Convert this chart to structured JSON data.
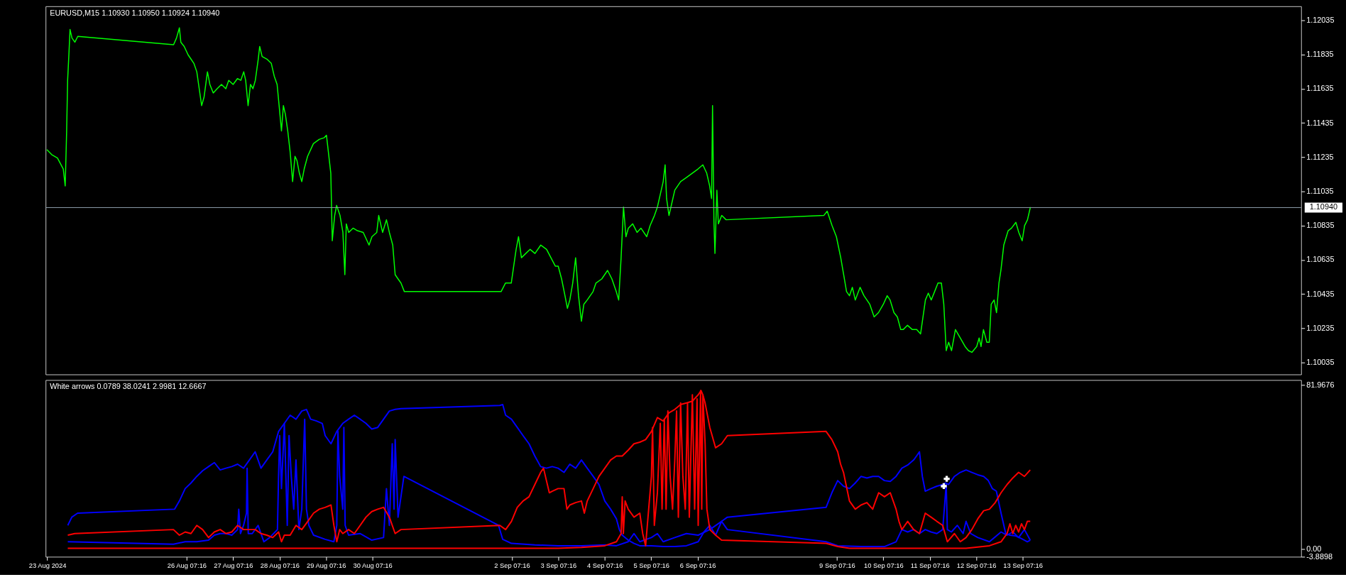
{
  "chart_data": [
    {
      "type": "line",
      "title": "EURUSD,M15  1.10930 1.10950 1.10924 1.10940",
      "xlim": [
        "2024-08-23T06:22",
        "2024-09-19T07:08"
      ],
      "ylim": [
        1.09965,
        1.12117
      ],
      "yticks": [
        1.10035,
        1.10235,
        1.10435,
        1.10635,
        1.10835,
        1.11035,
        1.11235,
        1.11435,
        1.11635,
        1.11835,
        1.12035
      ],
      "tick_labels": "y",
      "grid": false,
      "legend": false,
      "ref_lines": [
        {
          "axis": "y",
          "value": 1.1094,
          "label": "1.10940",
          "color": "#8a9aa8"
        }
      ],
      "series": [
        {
          "color": "#00ff00",
          "x": [
            "2024-08-23T07:00",
            "2024-08-23T09:30",
            "2024-08-23T12:30",
            "2024-08-23T15:30",
            "2024-08-23T16:30",
            "2024-08-23T17:15",
            "2024-08-23T17:45",
            "2024-08-23T18:30",
            "2024-08-23T19:00",
            "2024-08-23T20:00",
            "2024-08-23T21:30",
            "2024-08-23T23:00",
            "2024-08-26T00:30",
            "2024-08-26T02:00",
            "2024-08-26T03:30",
            "2024-08-26T04:15",
            "2024-08-26T06:00",
            "2024-08-26T08:00",
            "2024-08-26T09:30",
            "2024-08-26T11:00",
            "2024-08-26T12:30",
            "2024-08-26T13:45",
            "2024-08-26T15:00",
            "2024-08-26T16:15",
            "2024-08-26T18:00",
            "2024-08-26T19:15",
            "2024-08-26T21:00",
            "2024-08-26T23:00",
            "2024-08-27T01:15",
            "2024-08-27T03:30",
            "2024-08-27T05:00",
            "2024-08-27T07:15",
            "2024-08-27T09:30",
            "2024-08-27T11:15",
            "2024-08-27T12:45",
            "2024-08-27T13:45",
            "2024-08-27T15:00",
            "2024-08-27T16:15",
            "2024-08-27T17:30",
            "2024-08-27T18:45",
            "2024-08-27T20:15",
            "2024-08-27T21:00",
            "2024-08-27T22:15",
            "2024-08-28T00:45",
            "2024-08-28T03:00",
            "2024-08-28T04:30",
            "2024-08-28T06:00",
            "2024-08-28T07:15",
            "2024-08-28T08:15",
            "2024-08-28T09:15",
            "2024-08-28T10:15",
            "2024-08-28T11:30",
            "2024-08-28T12:45",
            "2024-08-28T14:00",
            "2024-08-28T15:15",
            "2024-08-28T16:15",
            "2024-08-28T17:30",
            "2024-08-28T18:45",
            "2024-08-28T20:00",
            "2024-08-28T21:45",
            "2024-08-29T00:45",
            "2024-08-29T03:45",
            "2024-08-29T06:15",
            "2024-08-29T07:30",
            "2024-08-29T08:15",
            "2024-08-29T09:45",
            "2024-08-29T10:30",
            "2024-08-29T11:45",
            "2024-08-29T12:45",
            "2024-08-29T14:30",
            "2024-08-29T16:00",
            "2024-08-29T17:00",
            "2024-08-29T17:45",
            "2024-08-29T19:00",
            "2024-08-29T21:15",
            "2024-08-29T23:30",
            "2024-08-30T02:30",
            "2024-08-30T05:30",
            "2024-08-30T07:00",
            "2024-08-30T09:30",
            "2024-08-30T10:30",
            "2024-08-30T12:30",
            "2024-08-30T14:30",
            "2024-08-30T16:00",
            "2024-08-30T17:45",
            "2024-08-30T19:00",
            "2024-08-30T20:30",
            "2024-08-30T22:00",
            "2024-08-30T23:45",
            "2024-09-02T01:45",
            "2024-09-02T04:00",
            "2024-09-02T07:00",
            "2024-09-02T09:30",
            "2024-09-02T10:45",
            "2024-09-02T12:15",
            "2024-09-02T14:30",
            "2024-09-02T16:45",
            "2024-09-02T19:15",
            "2024-09-02T22:15",
            "2024-09-03T01:15",
            "2024-09-03T03:30",
            "2024-09-03T05:45",
            "2024-09-03T07:15",
            "2024-09-03T09:00",
            "2024-09-03T10:45",
            "2024-09-03T12:00",
            "2024-09-03T13:15",
            "2024-09-03T14:45",
            "2024-09-03T16:15",
            "2024-09-03T17:45",
            "2024-09-03T19:15",
            "2024-09-03T20:30",
            "2024-09-03T22:15",
            "2024-09-04T01:15",
            "2024-09-04T02:45",
            "2024-09-04T05:45",
            "2024-09-04T08:45",
            "2024-09-04T11:00",
            "2024-09-04T13:15",
            "2024-09-04T14:30",
            "2024-09-04T15:45",
            "2024-09-04T17:00",
            "2024-09-04T18:15",
            "2024-09-04T19:30",
            "2024-09-04T21:45",
            "2024-09-05T00:00",
            "2024-09-05T02:00",
            "2024-09-05T05:00",
            "2024-09-05T06:45",
            "2024-09-05T09:00",
            "2024-09-05T10:30",
            "2024-09-05T12:00",
            "2024-09-05T13:30",
            "2024-09-05T14:30",
            "2024-09-05T15:15",
            "2024-09-05T16:30",
            "2024-09-05T18:00",
            "2024-09-05T19:30",
            "2024-09-05T22:30",
            "2024-09-06T01:30",
            "2024-09-06T04:30",
            "2024-09-06T07:30",
            "2024-09-06T10:00",
            "2024-09-06T12:00",
            "2024-09-06T13:30",
            "2024-09-06T14:30",
            "2024-09-06T15:00",
            "2024-09-06T15:45",
            "2024-09-06T16:15",
            "2024-09-06T17:15",
            "2024-09-06T18:00",
            "2024-09-06T19:45",
            "2024-09-06T22:00",
            "2024-09-09T00:30",
            "2024-09-09T02:15",
            "2024-09-09T04:45",
            "2024-09-09T07:00",
            "2024-09-09T09:15",
            "2024-09-09T10:45",
            "2024-09-09T12:15",
            "2024-09-09T13:45",
            "2024-09-09T15:15",
            "2024-09-09T16:45",
            "2024-09-09T19:15",
            "2024-09-09T21:15",
            "2024-09-10T00:15",
            "2024-09-10T02:30",
            "2024-09-10T04:45",
            "2024-09-10T07:15",
            "2024-09-10T09:15",
            "2024-09-10T10:45",
            "2024-09-10T12:45",
            "2024-09-10T14:30",
            "2024-09-10T16:15",
            "2024-09-10T17:30",
            "2024-09-10T19:45",
            "2024-09-10T22:15",
            "2024-09-11T00:30",
            "2024-09-11T02:30",
            "2024-09-11T03:45",
            "2024-09-11T05:00",
            "2024-09-11T06:30",
            "2024-09-11T08:00",
            "2024-09-11T09:45",
            "2024-09-11T11:30",
            "2024-09-11T13:15",
            "2024-09-11T14:30",
            "2024-09-11T15:45",
            "2024-09-11T17:00",
            "2024-09-11T18:30",
            "2024-09-11T20:30",
            "2024-09-11T23:00",
            "2024-09-12T01:30",
            "2024-09-12T03:15",
            "2024-09-12T05:00",
            "2024-09-12T07:30",
            "2024-09-12T08:45",
            "2024-09-12T09:45",
            "2024-09-12T11:00",
            "2024-09-12T12:45",
            "2024-09-12T14:00",
            "2024-09-12T15:00",
            "2024-09-12T16:30",
            "2024-09-12T17:45",
            "2024-09-12T19:00",
            "2024-09-12T20:00",
            "2024-09-12T21:30",
            "2024-09-12T23:45",
            "2024-09-13T01:30",
            "2024-09-13T03:45",
            "2024-09-13T05:15",
            "2024-09-13T07:00",
            "2024-09-13T08:15",
            "2024-09-13T09:45",
            "2024-09-13T11:15"
          ],
          "values": [
            1.11279,
            1.1125,
            1.1123,
            1.11166,
            1.11067,
            1.11388,
            1.11684,
            1.11857,
            1.11981,
            1.11931,
            1.11907,
            1.11941,
            1.11892,
            1.11931,
            1.11991,
            1.11907,
            1.11882,
            1.11833,
            1.11808,
            1.11783,
            1.11734,
            1.11635,
            1.11536,
            1.11586,
            1.11734,
            1.1166,
            1.1161,
            1.11635,
            1.1166,
            1.11635,
            1.11684,
            1.1166,
            1.11694,
            1.11684,
            1.11734,
            1.11684,
            1.11536,
            1.1166,
            1.11635,
            1.11684,
            1.11808,
            1.11882,
            1.11823,
            1.11808,
            1.11783,
            1.11709,
            1.1166,
            1.11511,
            1.11388,
            1.11536,
            1.11487,
            1.11388,
            1.11264,
            1.11092,
            1.1124,
            1.11215,
            1.11141,
            1.11092,
            1.11166,
            1.1124,
            1.11314,
            1.11339,
            1.11348,
            1.11363,
            1.11289,
            1.11141,
            1.10746,
            1.10894,
            1.10953,
            1.10894,
            1.10795,
            1.10548,
            1.10845,
            1.10795,
            1.1082,
            1.10805,
            1.10795,
            1.10721,
            1.1077,
            1.10795,
            1.10894,
            1.10795,
            1.10869,
            1.10795,
            1.10721,
            1.10548,
            1.10523,
            1.10499,
            1.10449,
            1.10449,
            1.10499,
            1.10499,
            1.10696,
            1.1077,
            1.10647,
            1.10672,
            1.10696,
            1.10672,
            1.10721,
            1.10696,
            1.10647,
            1.10598,
            1.10598,
            1.10523,
            1.10425,
            1.10351,
            1.104,
            1.10499,
            1.10647,
            1.10425,
            1.10276,
            1.10375,
            1.104,
            1.10449,
            1.10499,
            1.10523,
            1.10573,
            1.10523,
            1.10449,
            1.104,
            1.10647,
            1.10943,
            1.1077,
            1.1082,
            1.10845,
            1.10795,
            1.1082,
            1.1077,
            1.10835,
            1.10894,
            1.10943,
            1.11017,
            1.11092,
            1.1119,
            1.10993,
            1.10894,
            1.10968,
            1.11042,
            1.11092,
            1.11116,
            1.11141,
            1.11166,
            1.1119,
            1.11141,
            1.11067,
            1.10993,
            1.11536,
            1.10845,
            1.10672,
            1.11042,
            1.10845,
            1.10894,
            1.10869,
            1.10894,
            1.10919,
            1.10835,
            1.1077,
            1.10647,
            1.10548,
            1.10449,
            1.10425,
            1.10474,
            1.104,
            1.10474,
            1.10425,
            1.10375,
            1.10301,
            1.10326,
            1.10375,
            1.10425,
            1.104,
            1.10326,
            1.10301,
            1.10227,
            1.10227,
            1.10252,
            1.10227,
            1.10227,
            1.10202,
            1.10301,
            1.104,
            1.1044,
            1.104,
            1.10449,
            1.10499,
            1.10499,
            1.10375,
            1.10104,
            1.10153,
            1.10104,
            1.10227,
            1.10178,
            1.10128,
            1.10104,
            1.10094,
            1.10128,
            1.10178,
            1.10128,
            1.10227,
            1.10153,
            1.10153,
            1.10375,
            1.104,
            1.10326,
            1.10499,
            1.10573,
            1.10721,
            1.10805,
            1.1082,
            1.10854,
            1.10795,
            1.10746,
            1.10835,
            1.10869,
            1.10943
          ]
        }
      ]
    },
    {
      "type": "line",
      "title": "White arrows 0.0789 38.0241 2.9981 12.6667",
      "xlim": [
        "2024-08-23T06:22",
        "2024-09-19T07:08"
      ],
      "ylim": [
        -3.8898,
        84.5
      ],
      "xticks": [
        {
          "value": "2024-08-23T07:16",
          "label": "23 Aug 2024"
        },
        {
          "value": "2024-08-26T07:16",
          "label": "26 Aug 07:16"
        },
        {
          "value": "2024-08-27T07:16",
          "label": "27 Aug 07:16"
        },
        {
          "value": "2024-08-28T07:16",
          "label": "28 Aug 07:16"
        },
        {
          "value": "2024-08-29T07:16",
          "label": "29 Aug 07:16"
        },
        {
          "value": "2024-08-30T07:16",
          "label": "30 Aug 07:16"
        },
        {
          "value": "2024-09-02T07:16",
          "label": "2 Sep 07:16"
        },
        {
          "value": "2024-09-03T07:16",
          "label": "3 Sep 07:16"
        },
        {
          "value": "2024-09-04T07:16",
          "label": "4 Sep 07:16"
        },
        {
          "value": "2024-09-05T07:16",
          "label": "5 Sep 07:16"
        },
        {
          "value": "2024-09-06T07:16",
          "label": "6 Sep 07:16"
        },
        {
          "value": "2024-09-09T07:16",
          "label": "9 Sep 07:16"
        },
        {
          "value": "2024-09-10T07:16",
          "label": "10 Sep 07:16"
        },
        {
          "value": "2024-09-11T07:16",
          "label": "11 Sep 07:16"
        },
        {
          "value": "2024-09-12T07:16",
          "label": "12 Sep 07:16"
        },
        {
          "value": "2024-09-13T07:16",
          "label": "13 Sep 07:16"
        }
      ],
      "yticks": [
        81.9676,
        {
          "value": 0,
          "label": "0.00"
        },
        -3.8898
      ],
      "grid": false,
      "legend": false,
      "series": [
        {
          "color": "#0000ff",
          "x": [
            "2024-08-23T17:50",
            "2024-08-23T19:55",
            "2024-08-23T22:55",
            "2024-08-26T01:00",
            "2024-08-26T03:30",
            "2024-08-26T06:30",
            "2024-08-26T09:30",
            "2024-08-26T12:30",
            "2024-08-26T15:30",
            "2024-08-26T18:35",
            "2024-08-26T21:35",
            "2024-08-27T00:35",
            "2024-08-27T03:35",
            "2024-08-27T06:35",
            "2024-08-27T09:35",
            "2024-08-27T12:40",
            "2024-08-27T15:40",
            "2024-08-27T18:40",
            "2024-08-27T20:10",
            "2024-08-27T21:40",
            "2024-08-28T00:40",
            "2024-08-28T03:45",
            "2024-08-28T06:45",
            "2024-08-28T09:45",
            "2024-08-28T12:45",
            "2024-08-28T15:45",
            "2024-08-28T18:45",
            "2024-08-28T21:10",
            "2024-08-28T23:20",
            "2024-08-29T02:20",
            "2024-08-29T05:20",
            "2024-08-29T06:50",
            "2024-08-29T09:50",
            "2024-08-29T12:50",
            "2024-08-29T15:55",
            "2024-08-29T18:55",
            "2024-08-29T21:55",
            "2024-08-30T00:55",
            "2024-08-30T03:55",
            "2024-08-30T06:55",
            "2024-08-30T10:00",
            "2024-08-30T13:00",
            "2024-08-30T16:00",
            "2024-08-30T19:00",
            "2024-08-30T22:00",
            "2024-09-02T01:05",
            "2024-09-02T02:35",
            "2024-09-02T04:05",
            "2024-09-02T07:05",
            "2024-09-02T10:05",
            "2024-09-02T13:05",
            "2024-09-02T16:10",
            "2024-09-02T19:10",
            "2024-09-02T22:10",
            "2024-09-03T01:10",
            "2024-09-03T04:10",
            "2024-09-03T07:10",
            "2024-09-03T10:15",
            "2024-09-03T13:15",
            "2024-09-03T16:15",
            "2024-09-03T19:15",
            "2024-09-03T22:15",
            "2024-09-04T01:20",
            "2024-09-04T04:20",
            "2024-09-04T07:20",
            "2024-09-04T10:20",
            "2024-09-04T13:20",
            "2024-09-04T14:50",
            "2024-09-04T16:20",
            "2024-09-04T19:25",
            "2024-09-04T22:25",
            "2024-09-05T01:25",
            "2024-09-05T07:25",
            "2024-09-05T13:30",
            "2024-09-05T19:30",
            "2024-09-06T01:30",
            "2024-09-06T07:35",
            "2024-09-06T10:35",
            "2024-09-06T13:35",
            "2024-09-06T16:35",
            "2024-09-06T19:40",
            "2024-09-06T22:40",
            "2024-09-09T01:40",
            "2024-09-09T04:40",
            "2024-09-09T07:40",
            "2024-09-09T10:40",
            "2024-09-09T13:45",
            "2024-09-09T16:45",
            "2024-09-09T19:45",
            "2024-09-09T22:45",
            "2024-09-10T01:45",
            "2024-09-10T04:50",
            "2024-09-10T07:50",
            "2024-09-10T10:50",
            "2024-09-10T13:50",
            "2024-09-10T16:50",
            "2024-09-10T19:50",
            "2024-09-10T22:55",
            "2024-09-11T00:25",
            "2024-09-11T01:55",
            "2024-09-11T03:25",
            "2024-09-11T04:55",
            "2024-09-11T07:55",
            "2024-09-11T10:55",
            "2024-09-11T13:55",
            "2024-09-11T15:25",
            "2024-09-11T16:55",
            "2024-09-11T20:00",
            "2024-09-11T23:00",
            "2024-09-12T02:00",
            "2024-09-12T05:00",
            "2024-09-12T08:05",
            "2024-09-12T11:05",
            "2024-09-12T13:30",
            "2024-09-12T15:35",
            "2024-09-12T17:40",
            "2024-09-12T20:05",
            "2024-09-12T22:30",
            "2024-09-13T00:40",
            "2024-09-13T03:40",
            "2024-09-13T06:40",
            "2024-09-13T09:40",
            "2024-09-13T11:10"
          ],
          "values": [
            11.8,
            15.9,
            17.9,
            19.9,
            24.0,
            30.2,
            33.0,
            36.3,
            39.1,
            41.2,
            43.2,
            39.5,
            40.4,
            41.2,
            42.4,
            40.4,
            44.5,
            48.6,
            44.5,
            40.4,
            44.5,
            48.6,
            58.8,
            62.8,
            66.9,
            64.9,
            69.0,
            69.8,
            64.9,
            64.0,
            62.8,
            56.7,
            52.6,
            58.8,
            62.8,
            64.9,
            66.9,
            64.9,
            62.8,
            60.0,
            60.8,
            64.9,
            69.0,
            69.8,
            70.2,
            71.8,
            72.2,
            66.9,
            64.9,
            60.8,
            56.7,
            52.6,
            46.5,
            41.2,
            40.4,
            41.2,
            40.4,
            38.3,
            42.4,
            40.4,
            44.5,
            40.4,
            36.3,
            32.2,
            24.0,
            19.9,
            15.1,
            9.7,
            6.9,
            4.4,
            2.8,
            1.6,
            1.6,
            1.2,
            1.2,
            1.6,
            3.6,
            8.5,
            11.8,
            6.9,
            13.8,
            15.9,
            20.8,
            28.1,
            34.2,
            31.4,
            30.2,
            33.0,
            36.3,
            35.5,
            36.3,
            36.3,
            34.2,
            33.8,
            36.3,
            40.4,
            42.0,
            44.5,
            46.5,
            48.6,
            36.3,
            28.9,
            30.2,
            31.4,
            32.2,
            33.0,
            32.2,
            36.3,
            38.3,
            39.5,
            38.3,
            37.1,
            36.3,
            34.2,
            30.2,
            28.9,
            17.9,
            7.7,
            6.9,
            6.5,
            5.2,
            3.6,
            4.4
          ]
        },
        {
          "color": "#0000ff",
          "x": [
            "2024-08-23T17:50",
            "2024-08-26T00:25",
            "2024-08-26T06:30",
            "2024-08-26T12:30",
            "2024-08-26T18:35",
            "2024-08-26T21:35",
            "2024-08-27T00:35",
            "2024-08-27T03:35",
            "2024-08-27T06:35",
            "2024-08-27T09:35",
            "2024-08-27T10:10",
            "2024-08-27T11:05",
            "2024-08-27T12:40",
            "2024-08-27T14:10",
            "2024-08-27T14:30",
            "2024-08-27T15:05",
            "2024-08-27T17:10",
            "2024-08-27T20:10",
            "2024-08-27T23:10",
            "2024-08-28T02:10",
            "2024-08-28T06:10",
            "2024-08-28T06:45",
            "2024-08-28T07:20",
            "2024-08-28T08:15",
            "2024-08-28T09:45",
            "2024-08-28T11:15",
            "2024-08-28T12:10",
            "2024-08-28T13:20",
            "2024-08-28T14:35",
            "2024-08-28T15:45",
            "2024-08-28T17:15",
            "2024-08-28T18:45",
            "2024-08-28T20:15",
            "2024-08-28T21:10",
            "2024-08-28T22:25",
            "2024-08-29T00:50",
            "2024-08-29T06:50",
            "2024-08-29T11:20",
            "2024-08-29T12:50",
            "2024-08-29T13:25",
            "2024-08-29T14:20",
            "2024-08-29T15:55",
            "2024-08-29T16:30",
            "2024-08-29T17:10",
            "2024-08-29T18:55",
            "2024-08-30T00:55",
            "2024-08-30T06:55",
            "2024-08-30T13:00",
            "2024-08-30T14:30",
            "2024-08-30T16:00",
            "2024-08-30T17:30",
            "2024-08-30T18:25",
            "2024-08-30T19:00",
            "2024-08-30T20:30",
            "2024-08-30T23:30",
            "2024-09-02T00:25",
            "2024-09-02T02:35",
            "2024-09-02T07:05",
            "2024-09-02T19:10",
            "2024-09-03T07:10",
            "2024-09-03T19:15",
            "2024-09-04T07:20",
            "2024-09-04T13:20",
            "2024-09-04T19:25",
            "2024-09-04T22:25",
            "2024-09-05T01:25",
            "2024-09-05T07:25",
            "2024-09-05T10:30",
            "2024-09-05T13:30",
            "2024-09-05T19:30",
            "2024-09-06T01:30",
            "2024-09-06T07:35",
            "2024-09-06T13:35",
            "2024-09-06T19:40",
            "2024-09-06T22:40",
            "2024-09-09T01:40",
            "2024-09-09T07:40",
            "2024-09-09T19:45",
            "2024-09-10T07:50",
            "2024-09-10T13:50",
            "2024-09-10T16:50",
            "2024-09-10T19:50",
            "2024-09-10T22:55",
            "2024-09-11T01:55",
            "2024-09-11T04:55",
            "2024-09-11T07:55",
            "2024-09-11T10:55",
            "2024-09-11T13:55",
            "2024-09-11T15:05",
            "2024-09-11T15:45",
            "2024-09-11T16:20",
            "2024-09-11T18:25",
            "2024-09-11T21:30",
            "2024-09-12T00:30",
            "2024-09-12T02:00",
            "2024-09-12T04:25",
            "2024-09-12T08:05",
            "2024-09-12T14:05",
            "2024-09-12T20:05",
            "2024-09-12T23:10",
            "2024-09-13T02:10",
            "2024-09-13T05:10",
            "2024-09-13T08:10",
            "2024-09-13T11:10"
          ],
          "values": [
            3.6,
            2.4,
            3.6,
            3.6,
            4.4,
            6.9,
            7.7,
            7.7,
            6.9,
            9.7,
            19.9,
            7.7,
            11.8,
            17.9,
            40.4,
            7.7,
            7.7,
            11.8,
            3.6,
            5.7,
            9.7,
            36.3,
            56.7,
            30.2,
            62.8,
            11.8,
            56.7,
            36.3,
            19.9,
            44.5,
            9.7,
            19.9,
            64.9,
            19.9,
            11.8,
            6.9,
            4.8,
            3.6,
            11.8,
            58.8,
            36.3,
            19.9,
            60.8,
            11.8,
            6.9,
            7.7,
            4.4,
            5.7,
            30.2,
            11.8,
            52.6,
            19.9,
            54.7,
            15.9,
            36.3,
            11.8,
            4.8,
            2.8,
            2.0,
            1.6,
            1.6,
            2.0,
            1.6,
            3.6,
            7.7,
            3.6,
            5.7,
            7.7,
            3.6,
            5.7,
            7.7,
            6.9,
            9.7,
            13.8,
            9.7,
            3.6,
            1.6,
            1.2,
            1.2,
            3.6,
            9.7,
            8.5,
            9.7,
            7.7,
            9.7,
            8.5,
            7.7,
            9.7,
            24.0,
            32.2,
            9.7,
            8.5,
            11.8,
            7.7,
            13.8,
            7.7,
            5.7,
            3.6,
            8.5,
            6.9,
            8.5,
            5.7,
            9.7,
            4.4
          ]
        },
        {
          "color": "#ff0000",
          "x": [
            "2024-08-23T17:50",
            "2024-08-23T21:25",
            "2024-08-26T00:25",
            "2024-08-26T03:30",
            "2024-08-26T06:30",
            "2024-08-26T09:30",
            "2024-08-26T12:30",
            "2024-08-26T15:30",
            "2024-08-26T18:35",
            "2024-08-26T21:35",
            "2024-08-27T00:35",
            "2024-08-27T03:35",
            "2024-08-27T06:35",
            "2024-08-27T09:35",
            "2024-08-27T12:40",
            "2024-08-27T18:40",
            "2024-08-27T21:40",
            "2024-08-28T00:40",
            "2024-08-28T03:45",
            "2024-08-28T06:45",
            "2024-08-28T08:15",
            "2024-08-28T09:45",
            "2024-08-28T12:45",
            "2024-08-28T15:45",
            "2024-08-28T18:45",
            "2024-08-28T21:50",
            "2024-08-29T00:50",
            "2024-08-29T03:50",
            "2024-08-29T06:50",
            "2024-08-29T09:50",
            "2024-08-29T11:20",
            "2024-08-29T12:50",
            "2024-08-29T14:20",
            "2024-08-29T15:55",
            "2024-08-29T18:55",
            "2024-08-29T21:55",
            "2024-08-30T00:55",
            "2024-08-30T03:55",
            "2024-08-30T06:55",
            "2024-08-30T10:00",
            "2024-08-30T13:00",
            "2024-08-30T16:00",
            "2024-08-30T19:00",
            "2024-08-30T22:00",
            "2024-09-02T01:05",
            "2024-09-02T04:05",
            "2024-09-02T07:05",
            "2024-09-02T10:05",
            "2024-09-02T13:05",
            "2024-09-02T16:10",
            "2024-09-02T19:10",
            "2024-09-02T22:10",
            "2024-09-02T23:40",
            "2024-09-03T01:10",
            "2024-09-03T02:40",
            "2024-09-03T04:10",
            "2024-09-03T07:10",
            "2024-09-03T10:15",
            "2024-09-03T11:45",
            "2024-09-03T13:15",
            "2024-09-03T16:15",
            "2024-09-03T19:15",
            "2024-09-03T20:45",
            "2024-09-03T22:15",
            "2024-09-04T01:20",
            "2024-09-04T04:20",
            "2024-09-04T07:20",
            "2024-09-04T10:20",
            "2024-09-04T13:20",
            "2024-09-04T16:20",
            "2024-09-04T19:25",
            "2024-09-04T22:25",
            "2024-09-05T01:25",
            "2024-09-05T04:25",
            "2024-09-05T07:25",
            "2024-09-05T10:30",
            "2024-09-05T13:30",
            "2024-09-05T16:30",
            "2024-09-05T19:30",
            "2024-09-05T22:30",
            "2024-09-06T01:30",
            "2024-09-06T04:35",
            "2024-09-06T07:35",
            "2024-09-06T09:05",
            "2024-09-06T10:00",
            "2024-09-06T11:10",
            "2024-09-06T13:35",
            "2024-09-06T16:35",
            "2024-09-06T19:40",
            "2024-09-06T22:40",
            "2024-09-09T01:40",
            "2024-09-09T04:40",
            "2024-09-09T07:40",
            "2024-09-09T09:10",
            "2024-09-09T10:40",
            "2024-09-09T13:45",
            "2024-09-09T16:45",
            "2024-09-09T19:45",
            "2024-09-09T22:45",
            "2024-09-10T01:45",
            "2024-09-10T03:15",
            "2024-09-10T04:50",
            "2024-09-10T07:50",
            "2024-09-10T10:50",
            "2024-09-10T13:50",
            "2024-09-10T15:20",
            "2024-09-10T16:50",
            "2024-09-10T19:50",
            "2024-09-10T22:55",
            "2024-09-11T01:55",
            "2024-09-11T04:55",
            "2024-09-11T07:55",
            "2024-09-11T10:55",
            "2024-09-11T13:55",
            "2024-09-11T16:20",
            "2024-09-11T20:00",
            "2024-09-11T23:00",
            "2024-09-12T02:00",
            "2024-09-12T05:00",
            "2024-09-12T08:05",
            "2024-09-12T11:05",
            "2024-09-12T14:05",
            "2024-09-12T17:05",
            "2024-09-12T20:05",
            "2024-09-12T23:10",
            "2024-09-13T02:10",
            "2024-09-13T05:10",
            "2024-09-13T08:10",
            "2024-09-13T11:10"
          ],
          "values": [
            6.9,
            7.7,
            9.7,
            6.9,
            8.5,
            7.7,
            11.8,
            9.7,
            5.7,
            8.5,
            9.7,
            7.7,
            8.5,
            11.8,
            9.7,
            9.7,
            7.7,
            6.9,
            5.7,
            8.5,
            3.6,
            6.9,
            6.9,
            11.8,
            9.7,
            13.8,
            17.9,
            19.9,
            20.8,
            22.0,
            11.8,
            3.6,
            9.7,
            7.7,
            9.7,
            7.7,
            11.8,
            15.9,
            18.7,
            19.9,
            20.8,
            15.9,
            7.7,
            9.7,
            11.8,
            9.7,
            13.8,
            20.8,
            24.0,
            26.1,
            32.2,
            38.3,
            40.4,
            34.2,
            28.1,
            28.9,
            30.2,
            30.2,
            19.9,
            22.0,
            23.2,
            24.0,
            17.9,
            24.0,
            30.2,
            36.3,
            40.4,
            44.5,
            46.5,
            46.5,
            49.4,
            52.6,
            53.4,
            54.7,
            58.8,
            65.7,
            64.0,
            68.1,
            69.8,
            72.2,
            73.0,
            73.9,
            77.1,
            79.2,
            77.1,
            73.0,
            60.8,
            50.6,
            52.6,
            56.7,
            58.8,
            54.7,
            48.6,
            42.4,
            38.3,
            24.0,
            19.9,
            22.0,
            23.2,
            19.9,
            24.0,
            28.1,
            26.1,
            28.1,
            19.9,
            13.8,
            9.7,
            13.8,
            9.7,
            7.7,
            17.9,
            15.9,
            13.8,
            11.8,
            3.6,
            7.7,
            3.6,
            5.7,
            9.7,
            15.1,
            19.1,
            19.9,
            23.2,
            28.1,
            32.2,
            35.5,
            38.3,
            36.3,
            39.5
          ]
        },
        {
          "color": "#ff0000",
          "x": [
            "2024-08-23T17:50",
            "2024-08-26T12:30",
            "2024-08-27T18:40",
            "2024-08-29T00:50",
            "2024-08-30T06:55",
            "2024-09-02T13:05",
            "2024-09-03T07:10",
            "2024-09-03T19:15",
            "2024-09-04T07:20",
            "2024-09-04T13:20",
            "2024-09-04T15:45",
            "2024-09-04T16:20",
            "2024-09-04T16:55",
            "2024-09-04T17:50",
            "2024-09-04T19:25",
            "2024-09-04T22:25",
            "2024-09-05T01:25",
            "2024-09-05T02:55",
            "2024-09-05T04:25",
            "2024-09-05T07:25",
            "2024-09-05T08:00",
            "2024-09-05T08:55",
            "2024-09-05T10:30",
            "2024-09-05T12:00",
            "2024-09-05T12:55",
            "2024-09-05T14:05",
            "2024-09-05T15:00",
            "2024-09-05T15:55",
            "2024-09-05T17:05",
            "2024-09-05T18:20",
            "2024-09-05T19:30",
            "2024-09-05T20:25",
            "2024-09-05T21:20",
            "2024-09-05T22:30",
            "2024-09-05T23:40",
            "2024-09-06T00:55",
            "2024-09-06T02:05",
            "2024-09-06T03:00",
            "2024-09-06T04:35",
            "2024-09-06T05:45",
            "2024-09-06T07:00",
            "2024-09-06T07:35",
            "2024-09-06T08:50",
            "2024-09-06T09:25",
            "2024-09-06T10:00",
            "2024-09-06T11:10",
            "2024-09-06T12:05",
            "2024-09-06T13:35",
            "2024-09-06T16:35",
            "2024-09-06T19:40",
            "2024-09-09T01:40",
            "2024-09-09T07:40",
            "2024-09-09T13:45",
            "2024-09-10T07:50",
            "2024-09-11T07:55",
            "2024-09-11T13:55",
            "2024-09-12T02:00",
            "2024-09-12T14:05",
            "2024-09-12T20:05",
            "2024-09-12T23:10",
            "2024-09-13T00:40",
            "2024-09-13T02:10",
            "2024-09-13T03:40",
            "2024-09-13T05:10",
            "2024-09-13T06:40",
            "2024-09-13T08:10",
            "2024-09-13T09:40",
            "2024-09-13T11:10"
          ],
          "values": [
            0.3,
            0.3,
            0.3,
            0.3,
            0.3,
            0.3,
            0.3,
            0.8,
            1.6,
            3.6,
            7.7,
            26.1,
            7.7,
            24.0,
            19.9,
            15.9,
            17.9,
            7.7,
            1.6,
            36.3,
            60.8,
            11.8,
            28.1,
            62.8,
            19.9,
            64.9,
            19.9,
            69.0,
            36.3,
            19.9,
            44.5,
            69.0,
            15.9,
            73.0,
            36.3,
            19.9,
            73.0,
            15.9,
            77.1,
            19.9,
            75.1,
            11.8,
            79.2,
            19.9,
            77.1,
            52.6,
            19.9,
            9.7,
            6.9,
            4.4,
            2.8,
            1.2,
            0.3,
            0.3,
            0.3,
            0.3,
            0.3,
            1.6,
            3.6,
            7.7,
            12.6,
            7.7,
            11.8,
            8.5,
            12.6,
            9.7,
            13.8,
            13.8
          ]
        },
        {
          "type": "scatter",
          "color": "#ffffff",
          "marker": "cross",
          "x": [
            "2024-09-11T14:30",
            "2024-09-11T16:00"
          ],
          "values": [
            31.4,
            35.1
          ]
        }
      ]
    }
  ]
}
